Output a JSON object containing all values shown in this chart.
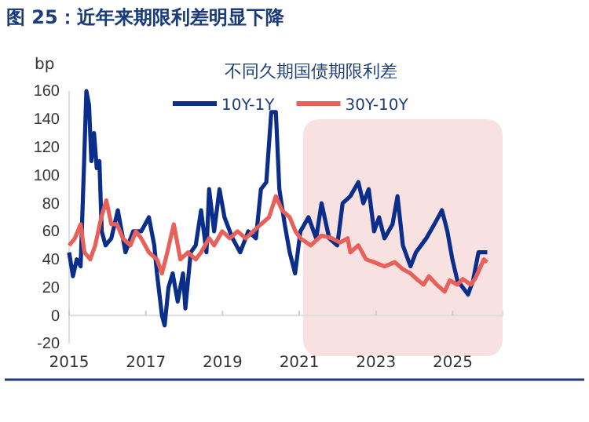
{
  "chart_data": {
    "type": "line",
    "title": "图 25：近年来期限利差明显下降",
    "subtitle": "不同久期国债期限利差",
    "ylabel": "bp",
    "xlim": [
      2015,
      2026.3
    ],
    "xticks": [
      2015,
      2017,
      2019,
      2021,
      2023,
      2025
    ],
    "ylim": [
      -20,
      160
    ],
    "yticks": [
      -20,
      0,
      20,
      40,
      60,
      80,
      100,
      120,
      140,
      160
    ],
    "grid": false,
    "legend": "top",
    "line_style": "solid",
    "marker": "none",
    "bands": [
      {
        "axis": "x",
        "from": 2021.1,
        "to": 2026.3,
        "color": "#f7e1e1"
      }
    ],
    "series": [
      {
        "name": "10Y-1Y",
        "color": "#0a2e8a",
        "x": [
          2015.0,
          2015.1,
          2015.2,
          2015.3,
          2015.38,
          2015.45,
          2015.52,
          2015.58,
          2015.65,
          2015.72,
          2015.79,
          2015.85,
          2015.95,
          2016.1,
          2016.27,
          2016.47,
          2016.67,
          2016.88,
          2017.08,
          2017.22,
          2017.29,
          2017.42,
          2017.49,
          2017.59,
          2017.7,
          2017.83,
          2017.97,
          2018.03,
          2018.17,
          2018.3,
          2018.44,
          2018.58,
          2018.65,
          2018.78,
          2018.92,
          2019.05,
          2019.26,
          2019.46,
          2019.67,
          2019.87,
          2020.0,
          2020.14,
          2020.27,
          2020.39,
          2020.48,
          2020.62,
          2020.75,
          2020.89,
          2020.96,
          2021.03,
          2021.24,
          2021.44,
          2021.58,
          2021.78,
          2021.99,
          2022.13,
          2022.33,
          2022.54,
          2022.67,
          2022.81,
          2022.95,
          2023.08,
          2023.22,
          2023.43,
          2023.56,
          2023.7,
          2023.9,
          2024.04,
          2024.31,
          2024.52,
          2024.72,
          2024.86,
          2024.99,
          2025.12,
          2025.26,
          2025.4,
          2025.53,
          2025.67,
          2025.81,
          2025.9
        ],
        "values": [
          45,
          28,
          40,
          35,
          100,
          160,
          150,
          110,
          130,
          105,
          110,
          60,
          50,
          55,
          75,
          45,
          60,
          60,
          70,
          50,
          30,
          0,
          -7,
          20,
          30,
          10,
          30,
          5,
          45,
          50,
          75,
          45,
          90,
          60,
          90,
          70,
          55,
          45,
          60,
          55,
          90,
          95,
          145,
          145,
          90,
          65,
          45,
          30,
          45,
          60,
          70,
          55,
          80,
          55,
          50,
          80,
          85,
          95,
          80,
          90,
          60,
          70,
          55,
          65,
          85,
          50,
          35,
          45,
          55,
          65,
          75,
          60,
          40,
          25,
          20,
          15,
          25,
          45,
          45,
          45
        ]
      },
      {
        "name": "30Y-10Y",
        "color": "#e8605a",
        "x": [
          2015.0,
          2015.15,
          2015.3,
          2015.4,
          2015.55,
          2015.68,
          2015.84,
          2015.97,
          2016.1,
          2016.25,
          2016.4,
          2016.6,
          2016.74,
          2016.88,
          2017.08,
          2017.29,
          2017.42,
          2017.56,
          2017.73,
          2017.9,
          2018.1,
          2018.3,
          2018.44,
          2018.65,
          2018.78,
          2018.99,
          2019.19,
          2019.39,
          2019.6,
          2019.8,
          2020.0,
          2020.21,
          2020.39,
          2020.55,
          2020.75,
          2020.9,
          2021.03,
          2021.3,
          2021.58,
          2021.85,
          2022.06,
          2022.26,
          2022.33,
          2022.54,
          2022.74,
          2022.95,
          2023.22,
          2023.49,
          2023.7,
          2023.9,
          2024.1,
          2024.24,
          2024.38,
          2024.58,
          2024.79,
          2024.92,
          2025.12,
          2025.26,
          2025.47,
          2025.6,
          2025.81,
          2025.9
        ],
        "values": [
          50,
          55,
          65,
          45,
          40,
          50,
          70,
          82,
          65,
          65,
          55,
          50,
          60,
          55,
          45,
          40,
          30,
          45,
          65,
          40,
          45,
          40,
          45,
          55,
          50,
          60,
          55,
          60,
          55,
          60,
          65,
          70,
          85,
          75,
          70,
          60,
          55,
          50,
          57,
          55,
          52,
          55,
          45,
          50,
          40,
          38,
          35,
          38,
          33,
          30,
          25,
          22,
          28,
          22,
          17,
          25,
          22,
          26,
          22,
          27,
          40,
          38
        ]
      }
    ]
  }
}
